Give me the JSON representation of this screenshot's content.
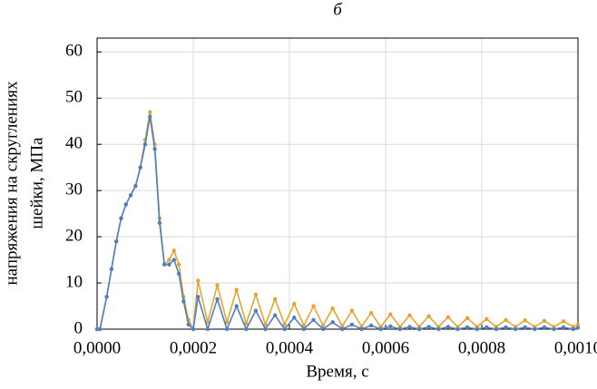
{
  "chart_data": {
    "type": "line",
    "title": "б",
    "x_label": "Время, с",
    "y_label": [
      "напряжения на скруглениях",
      "шейки, МПа"
    ],
    "x": [
      0,
      6e-06,
      2e-05,
      3e-05,
      4e-05,
      5e-05,
      6e-05,
      7e-05,
      8e-05,
      9e-05,
      0.0001,
      0.00011,
      0.00012,
      0.00013,
      0.00014,
      0.00015,
      0.00016,
      0.00017,
      0.00018,
      0.00019,
      0.0002,
      0.00021,
      0.00023,
      0.00025,
      0.00027,
      0.00029,
      0.00031,
      0.00033,
      0.00035,
      0.00037,
      0.00039,
      0.00041,
      0.00043,
      0.00045,
      0.00047,
      0.00049,
      0.00051,
      0.00053,
      0.00055,
      0.00057,
      0.00059,
      0.00061,
      0.00063,
      0.00065,
      0.00067,
      0.00069,
      0.00071,
      0.00073,
      0.00075,
      0.00077,
      0.00079,
      0.00081,
      0.00083,
      0.00085,
      0.00087,
      0.00089,
      0.00091,
      0.00093,
      0.00095,
      0.00097,
      0.00099,
      0.001
    ],
    "series": [
      {
        "color": "#e6a532",
        "values": [
          0,
          0,
          7,
          13,
          19,
          24,
          27,
          29,
          31,
          35,
          41,
          47,
          40,
          24,
          14,
          15,
          17,
          14,
          7,
          2,
          0,
          10.5,
          1.5,
          9.5,
          1.5,
          8.5,
          1.2,
          7.5,
          1,
          6.5,
          1,
          5.5,
          0.8,
          5,
          0.8,
          4.5,
          0.7,
          4,
          0.6,
          3.5,
          0.5,
          3.2,
          0.5,
          3,
          0.5,
          2.8,
          0.5,
          2.6,
          0.5,
          2.4,
          0.5,
          2.2,
          0.5,
          2,
          0.5,
          1.9,
          0.5,
          1.8,
          0.5,
          1.7,
          0.5,
          1
        ]
      },
      {
        "color": "#4f7fc0",
        "values": [
          0,
          0,
          7,
          13,
          19,
          24,
          27,
          29,
          31,
          35,
          40,
          46,
          39,
          23,
          14,
          14,
          15,
          12,
          6,
          1,
          0,
          7,
          0,
          6.5,
          0,
          5,
          0,
          4,
          0,
          3,
          0,
          2.5,
          0,
          2,
          0,
          1.5,
          0,
          1,
          0,
          0.8,
          0,
          0.6,
          0,
          0.5,
          0,
          0.5,
          0,
          0.5,
          0,
          0.4,
          0,
          0.4,
          0,
          0.4,
          0,
          0.4,
          0,
          0.4,
          0,
          0.4,
          0,
          0.3
        ]
      }
    ],
    "xlim": [
      0,
      0.001
    ],
    "ylim": [
      0,
      63
    ],
    "xticks": [
      {
        "value": 0,
        "label": "0,0000"
      },
      {
        "value": 0.0002,
        "label": "0,0002"
      },
      {
        "value": 0.0004,
        "label": "0,0004"
      },
      {
        "value": 0.0006,
        "label": "0,0006"
      },
      {
        "value": 0.0008,
        "label": "0,0008"
      },
      {
        "value": 0.001,
        "label": "0,0010"
      }
    ],
    "yticks": [
      0,
      10,
      20,
      30,
      40,
      50,
      60
    ],
    "grid": true
  }
}
